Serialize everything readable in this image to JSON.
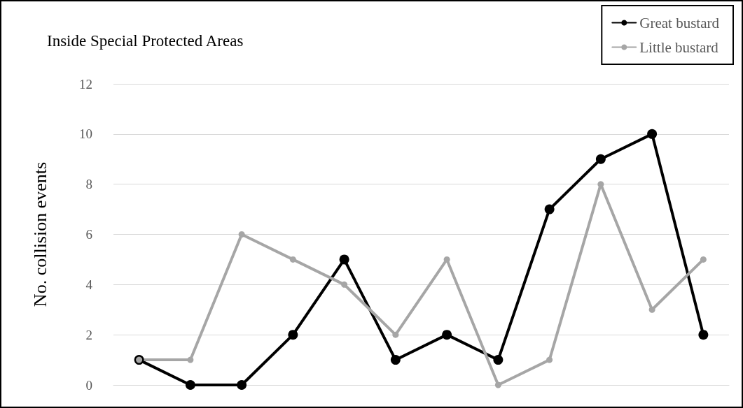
{
  "chart_data": {
    "type": "line",
    "title": "Inside Special Protected Areas",
    "ylabel": "No. collision events",
    "categories": [
      null,
      null,
      null,
      null,
      null,
      null,
      null,
      null,
      null,
      null,
      null,
      null
    ],
    "series": [
      {
        "name": "Great bustard",
        "color": "#000000",
        "values": [
          1,
          0,
          0,
          2,
          5,
          1,
          2,
          1,
          7,
          9,
          10,
          2
        ]
      },
      {
        "name": "Little bustard",
        "color": "#a6a6a6",
        "values": [
          1,
          1,
          6,
          5,
          4,
          2,
          5,
          0,
          1,
          8,
          3,
          5
        ]
      }
    ],
    "ylim": [
      0,
      12
    ],
    "yticks": [
      0,
      2,
      4,
      6,
      8,
      10,
      12
    ],
    "grid": "y",
    "legend": "top right",
    "marker": "circle",
    "line_style": "solid"
  }
}
